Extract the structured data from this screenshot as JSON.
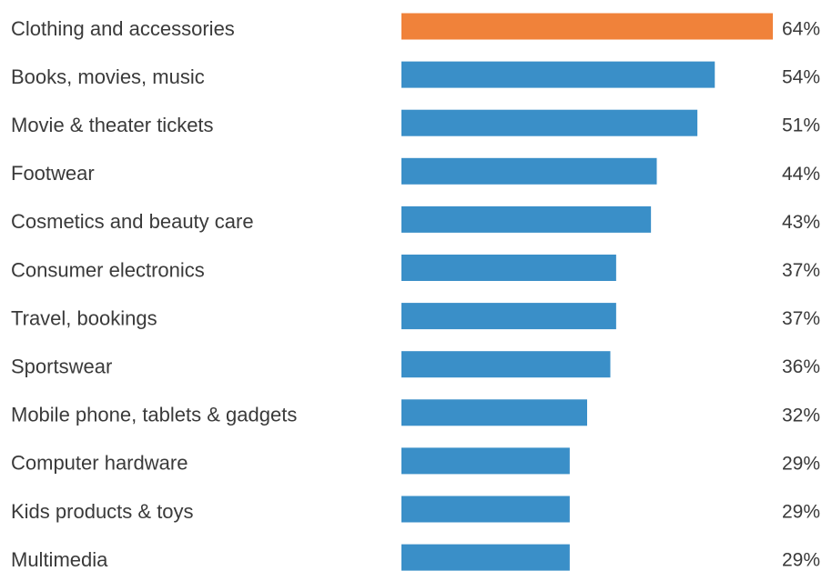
{
  "chart_data": {
    "type": "bar",
    "orientation": "horizontal",
    "categories": [
      "Clothing and accessories",
      "Books, movies, music",
      "Movie & theater tickets",
      "Footwear",
      "Cosmetics and beauty care",
      "Consumer electronics",
      "Travel, bookings",
      "Sportswear",
      "Mobile phone, tablets & gadgets",
      "Computer hardware",
      "Kids products & toys",
      "Multimedia"
    ],
    "values": [
      64,
      54,
      51,
      44,
      43,
      37,
      37,
      36,
      32,
      29,
      29,
      29
    ],
    "value_labels": [
      "64%",
      "54%",
      "51%",
      "44%",
      "43%",
      "37%",
      "37%",
      "36%",
      "32%",
      "29%",
      "29%",
      "29%"
    ],
    "highlight_index": 0,
    "colors": {
      "bar": "#3a8fc8",
      "highlight": "#f0823a",
      "text": "#3a3a3a"
    },
    "xlim": [
      0,
      64
    ],
    "grid": false,
    "legend": "none"
  }
}
